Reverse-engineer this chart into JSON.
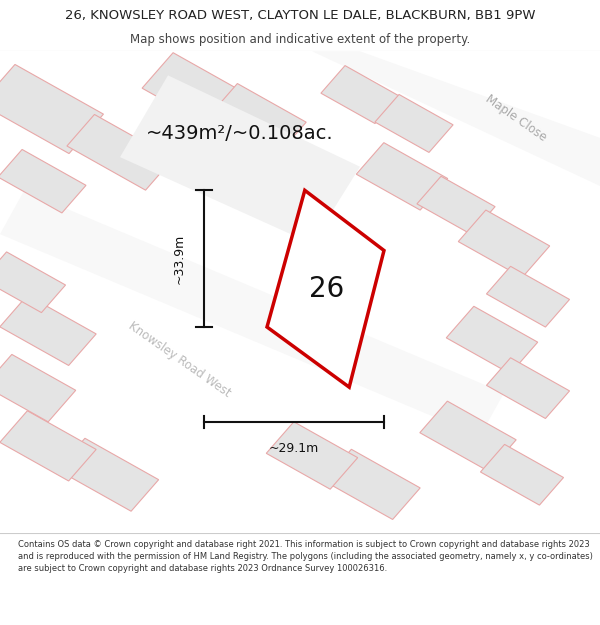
{
  "title_line1": "26, KNOWSLEY ROAD WEST, CLAYTON LE DALE, BLACKBURN, BB1 9PW",
  "title_line2": "Map shows position and indicative extent of the property.",
  "area_text": "~439m²/~0.108ac.",
  "width_text": "~29.1m",
  "height_text": "~33.9m",
  "house_number": "26",
  "street_label": "Knowsley Road West",
  "corner_label": "Maple Close",
  "footer_text": "Contains OS data © Crown copyright and database right 2021. This information is subject to Crown copyright and database rights 2023 and is reproduced with the permission of HM Land Registry. The polygons (including the associated geometry, namely x, y co-ordinates) are subject to Crown copyright and database rights 2023 Ordnance Survey 100026316.",
  "map_bg": "#eeeeee",
  "bld_fill": "#e4e4e4",
  "bld_edge_pink": "#e8a8a8",
  "bld_edge_gray": "#c8c8c8",
  "road_fill": "#f8f8f8",
  "road_edge": "#dddddd",
  "white_fill": "#ffffff",
  "red_line": "#cc0000",
  "dark": "#111111",
  "street_color": "#bbbbbb",
  "maple_color": "#aaaaaa"
}
